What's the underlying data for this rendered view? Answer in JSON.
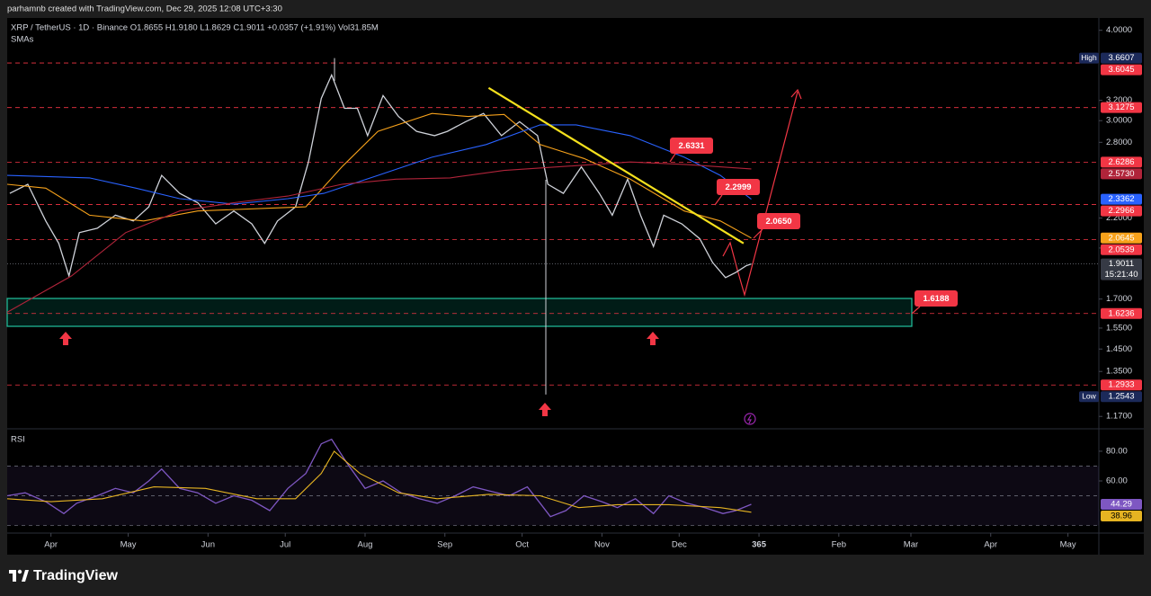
{
  "header": "parhamnb created with TradingView.com, Dec 29, 2025 12:08 UTC+3:30",
  "footer": "TradingView",
  "chart_data": [
    {
      "type": "line",
      "symbol_line": "XRP / TetherUS · 1D · Binance   O1.8655  H1.9180  L1.8629  C1.9011  +0.0357 (+1.91%)  Vol31.85M",
      "indicator": "SMAs",
      "log_scale": true,
      "xlim": [
        73,
        497
      ],
      "ylim": [
        1.128,
        4.16
      ],
      "xticks": [
        {
          "value": 90,
          "label": "Apr"
        },
        {
          "value": 120,
          "label": "May"
        },
        {
          "value": 151,
          "label": "Jun"
        },
        {
          "value": 181,
          "label": "Jul"
        },
        {
          "value": 212,
          "label": "Aug"
        },
        {
          "value": 243,
          "label": "Sep"
        },
        {
          "value": 273,
          "label": "Oct"
        },
        {
          "value": 304,
          "label": "Nov"
        },
        {
          "value": 334,
          "label": "Dec"
        },
        365,
        {
          "value": 396,
          "label": "Feb"
        },
        {
          "value": 424,
          "label": "Mar"
        },
        {
          "value": 455,
          "label": "Apr"
        },
        {
          "value": 485,
          "label": "May"
        }
      ],
      "yticks": [
        {
          "value": 4,
          "label": "4.0000"
        },
        {
          "value": 3.2,
          "label": "3.2000"
        },
        {
          "value": 3,
          "label": "3.0000"
        },
        {
          "value": 2.8,
          "label": "2.8000"
        },
        {
          "value": 2.2,
          "label": "2.2000"
        },
        {
          "value": 2,
          "label": "2.0000"
        },
        {
          "value": 1.7,
          "label": "1.7000"
        },
        {
          "value": 1.55,
          "label": "1.5500"
        },
        {
          "value": 1.45,
          "label": "1.4500"
        },
        {
          "value": 1.35,
          "label": "1.3500"
        },
        {
          "value": 1.17,
          "label": "1.1700"
        }
      ],
      "series": [
        {
          "color": "#cfd2d9",
          "x": [
            74,
            81,
            88,
            93,
            97,
            101,
            108,
            115,
            122,
            128,
            133,
            140,
            147,
            154,
            161,
            168,
            173,
            178,
            185,
            190,
            195,
            199,
            204,
            209,
            213,
            219,
            225,
            232,
            239,
            244,
            251,
            258,
            265,
            272,
            279,
            283,
            289,
            296,
            303,
            308,
            314,
            319,
            324,
            328,
            335,
            342,
            347,
            352,
            356,
            360,
            362
          ],
          "values": [
            2.38,
            2.45,
            2.18,
            2.03,
            1.83,
            2.1,
            2.13,
            2.22,
            2.18,
            2.28,
            2.52,
            2.38,
            2.31,
            2.16,
            2.25,
            2.16,
            2.03,
            2.18,
            2.28,
            2.63,
            3.22,
            3.47,
            3.12,
            3.12,
            2.86,
            3.25,
            3.04,
            2.9,
            2.86,
            2.9,
            2.99,
            3.07,
            2.86,
            2.99,
            2.86,
            2.45,
            2.38,
            2.59,
            2.38,
            2.22,
            2.49,
            2.22,
            2.01,
            2.22,
            2.16,
            2.06,
            1.91,
            1.82,
            1.85,
            1.89,
            1.9011
          ]
        },
        {
          "color": "#f7a21b",
          "x": [
            73,
            88,
            105,
            126,
            147,
            175,
            189,
            203,
            217,
            238,
            252,
            266,
            280,
            297,
            315,
            336,
            350,
            362
          ],
          "values": [
            2.45,
            2.42,
            2.22,
            2.18,
            2.25,
            2.27,
            2.28,
            2.59,
            2.9,
            3.07,
            3.04,
            3.06,
            2.78,
            2.66,
            2.49,
            2.25,
            2.18,
            2.0645
          ]
        },
        {
          "color": "#2962ff",
          "x": [
            73,
            105,
            123,
            140,
            161,
            182,
            196,
            217,
            238,
            259,
            280,
            294,
            315,
            336,
            350,
            362
          ],
          "values": [
            2.52,
            2.5,
            2.42,
            2.34,
            2.3,
            2.34,
            2.38,
            2.52,
            2.67,
            2.78,
            2.96,
            2.96,
            2.86,
            2.67,
            2.52,
            2.3362
          ]
        },
        {
          "color": "#b0243a",
          "x": [
            73,
            98,
            119,
            140,
            161,
            182,
            203,
            224,
            245,
            266,
            287,
            315,
            336,
            362
          ],
          "values": [
            1.63,
            1.83,
            2.1,
            2.25,
            2.31,
            2.36,
            2.45,
            2.49,
            2.5,
            2.56,
            2.59,
            2.63,
            2.61,
            2.573
          ],
          "value_labels": [
            null,
            null,
            null,
            null,
            null,
            null,
            null,
            null,
            null,
            null,
            null,
            null,
            null,
            "2.5730"
          ]
        }
      ],
      "levels": [
        3.6045,
        3.1275,
        2.6286,
        2.2966,
        2.0539,
        1.6236,
        1.2933
      ],
      "level_color": "#f23645",
      "high": {
        "label": "High",
        "value": 3.6607
      },
      "low": {
        "label": "Low",
        "value": 1.2543
      },
      "countdown": "15:21:40",
      "trendline": {
        "color": "#f5e11d",
        "x": [
          260,
          359
        ],
        "values": [
          3.33,
          2.03
        ]
      },
      "callouts": [
        2.6331,
        2.2999,
        {
          "value": 2.065,
          "label": "2.0650"
        },
        1.6188
      ]
    },
    {
      "type": "line",
      "title": "RSI",
      "xlim": [
        73,
        497
      ],
      "ylim": [
        25.5,
        94.5
      ],
      "yticks": [
        {
          "value": 80,
          "label": "80.00"
        },
        {
          "value": 60,
          "label": "60.00"
        }
      ],
      "bands": [
        70,
        50,
        30
      ],
      "series": [
        {
          "color": "#7e57c2",
          "x": [
            73,
            80,
            88,
            95,
            100,
            108,
            115,
            122,
            128,
            133,
            140,
            147,
            154,
            161,
            168,
            175,
            182,
            189,
            195,
            199,
            205,
            212,
            219,
            226,
            233,
            240,
            247,
            254,
            261,
            268,
            275,
            280,
            284,
            290,
            297,
            304,
            310,
            317,
            324,
            330,
            337,
            344,
            351,
            356,
            362
          ],
          "values": [
            50,
            52,
            46,
            38,
            45,
            50,
            55,
            52,
            60,
            68,
            55,
            52,
            45,
            50,
            47,
            40,
            55,
            65,
            85,
            88,
            72,
            55,
            60,
            52,
            48,
            45,
            50,
            56,
            53,
            50,
            56,
            45,
            36,
            40,
            50,
            46,
            42,
            48,
            38,
            50,
            45,
            42,
            38,
            40,
            44.29
          ]
        },
        {
          "color": "#e6b422",
          "x": [
            73,
            90,
            110,
            130,
            150,
            170,
            185,
            195,
            200,
            210,
            225,
            240,
            260,
            280,
            295,
            310,
            330,
            350,
            362
          ],
          "values": [
            48,
            46,
            48,
            56,
            55,
            48,
            48,
            65,
            80,
            65,
            52,
            48,
            51,
            50,
            42,
            44,
            44,
            42,
            38.96
          ]
        }
      ]
    }
  ]
}
